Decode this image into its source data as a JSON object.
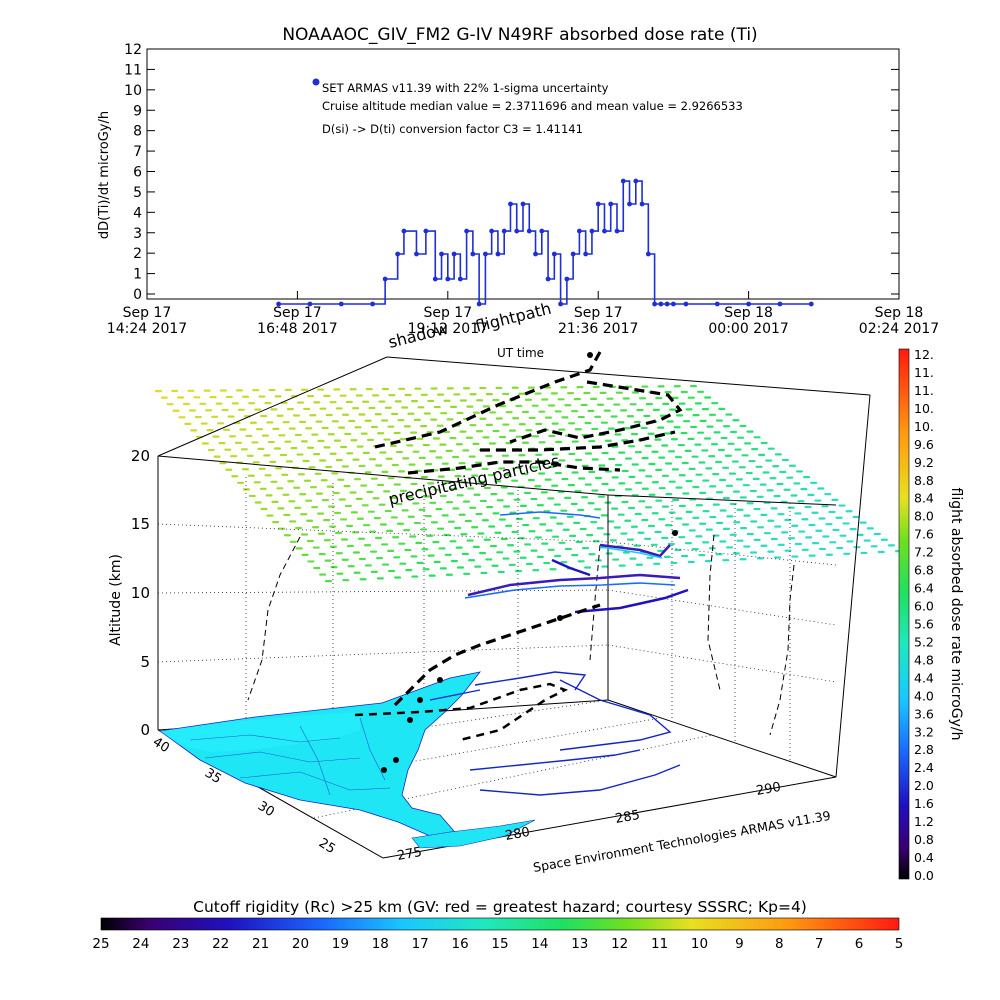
{
  "chart_data": [
    {
      "type": "line",
      "title": "NOAAAOC_GIV_FM2 G-IV    N49RF  absorbed dose rate (Ti)",
      "ylabel": "dD(Ti)/dt microGy/h",
      "xlabel": "UT time",
      "ylim": [
        0,
        12
      ],
      "yticks": [
        "0",
        "1",
        "2",
        "3",
        "4",
        "5",
        "6",
        "7",
        "8",
        "9",
        "10",
        "11",
        "12"
      ],
      "xticks": [
        {
          "l1": "Sep 17",
          "l2": "14:24 2017"
        },
        {
          "l1": "Sep 17",
          "l2": "16:48 2017"
        },
        {
          "l1": "Sep 17",
          "l2": "19:12 2017"
        },
        {
          "l1": "Sep 17",
          "l2": "21:36 2017"
        },
        {
          "l1": "Sep 18",
          "l2": "00:00 2017"
        },
        {
          "l1": "Sep 18",
          "l2": "02:24 2017"
        }
      ],
      "legend": {
        "series": "SET ARMAS v11.39 with 22% 1-sigma uncertainty",
        "line2": "Cruise altitude median value = 2.3711696 and mean value = 2.9266533",
        "line3": "D(si) -> D(ti) conversion factor C3 = 1.41141"
      },
      "series_color": "#1f2fd6",
      "series": [
        {
          "name": "SET ARMAS v11.39 with 22% 1-sigma uncertainty",
          "x_hours": [
            16.5,
            17.0,
            17.5,
            18.0,
            18.2,
            18.4,
            18.5,
            18.7,
            18.85,
            19.0,
            19.1,
            19.2,
            19.3,
            19.4,
            19.5,
            19.6,
            19.7,
            19.8,
            19.9,
            20.0,
            20.1,
            20.2,
            20.3,
            20.4,
            20.5,
            20.6,
            20.7,
            20.8,
            20.9,
            21.0,
            21.1,
            21.2,
            21.3,
            21.4,
            21.5,
            21.6,
            21.7,
            21.8,
            21.9,
            22.0,
            22.1,
            22.2,
            22.3,
            22.4,
            22.5,
            22.6,
            22.7,
            22.8,
            23.0,
            23.5,
            24.0,
            24.5,
            25.0
          ],
          "values": [
            0,
            0,
            0,
            0,
            1.2,
            2.4,
            3.5,
            2.4,
            3.5,
            1.2,
            2.4,
            1.2,
            2.4,
            1.2,
            3.5,
            2.4,
            0,
            2.4,
            3.5,
            2.4,
            3.5,
            4.8,
            3.5,
            4.8,
            3.5,
            2.4,
            3.5,
            1.2,
            2.4,
            0,
            1.2,
            2.4,
            3.5,
            2.4,
            3.5,
            4.8,
            3.5,
            4.8,
            3.5,
            5.9,
            4.8,
            5.9,
            4.8,
            2.4,
            0,
            0,
            0,
            0,
            0,
            0,
            0,
            0,
            0
          ]
        }
      ]
    },
    {
      "type": "scatter3d",
      "zlabel": "Altitude (km)",
      "zticks": [
        "0",
        "5",
        "10",
        "15",
        "20"
      ],
      "lat_ticks": [
        "40",
        "35",
        "30",
        "25"
      ],
      "lon_ticks": [
        "275",
        "280",
        "285",
        "290"
      ],
      "annotations": {
        "flightpath": "flightpath",
        "shadow": "shadow",
        "precip": "precipitating particles",
        "credit": "Space Environment Technologies ARMAS v11.39"
      },
      "colorbar_right": {
        "label": "flight absorbed dose rate microGy/h",
        "ticks": [
          "12.",
          "11.",
          "11.",
          "10.",
          "10.",
          "9.6",
          "9.2",
          "8.8",
          "8.4",
          "8.0",
          "7.6",
          "7.2",
          "6.8",
          "6.4",
          "6.0",
          "5.6",
          "5.2",
          "4.8",
          "4.4",
          "4.0",
          "3.6",
          "3.2",
          "2.8",
          "2.4",
          "2.0",
          "1.6",
          "1.2",
          "0.8",
          "0.4",
          "0.0"
        ]
      },
      "colorbar_bottom": {
        "label": "Cutoff rigidity (Rc) >25 km (GV: red = greatest hazard; courtesy SSSRC; Kp=4)",
        "ticks": [
          "25",
          "24",
          "23",
          "22",
          "21",
          "20",
          "19",
          "18",
          "17",
          "16",
          "15",
          "14",
          "13",
          "12",
          "11",
          "10",
          "9",
          "8",
          "7",
          "6",
          "5"
        ]
      },
      "colors": {
        "land": "#1ee6f5",
        "coast": "#1226c8",
        "track": "#000000",
        "dashed": "#000000"
      }
    }
  ]
}
